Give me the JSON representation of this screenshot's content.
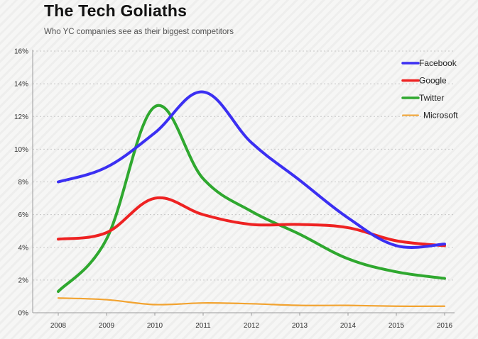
{
  "colors": {
    "Facebook": "#3b2ff2",
    "Google": "#ee2222",
    "Twitter": "#2fa82f",
    "Microsoft": "#f2a330"
  },
  "chart_data": {
    "type": "line",
    "title": "The Tech Goliaths",
    "subtitle": "Who YC companies see as their biggest competitors",
    "xlabel": "",
    "ylabel": "",
    "x": [
      "2008",
      "2009",
      "2010",
      "2011",
      "2012",
      "2013",
      "2014",
      "2015",
      "2016"
    ],
    "ylim": [
      0,
      16
    ],
    "yticks": [
      "0%",
      "2%",
      "4%",
      "6%",
      "8%",
      "10%",
      "12%",
      "14%",
      "16%"
    ],
    "grid": "horizontal",
    "legend": "top-right",
    "series": [
      {
        "name": "Facebook",
        "values": [
          8.0,
          8.9,
          11.0,
          13.5,
          10.4,
          8.1,
          5.8,
          4.1,
          4.2
        ]
      },
      {
        "name": "Google",
        "values": [
          4.5,
          4.9,
          7.0,
          6.0,
          5.4,
          5.4,
          5.2,
          4.4,
          4.1
        ]
      },
      {
        "name": "Twitter",
        "values": [
          1.3,
          4.5,
          12.6,
          8.2,
          6.2,
          4.8,
          3.3,
          2.5,
          2.1
        ]
      },
      {
        "name": "Microsoft",
        "values": [
          0.9,
          0.8,
          0.5,
          0.6,
          0.55,
          0.45,
          0.45,
          0.4,
          0.4
        ]
      }
    ]
  }
}
